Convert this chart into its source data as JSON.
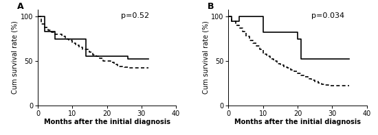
{
  "panel_A": {
    "label": "A",
    "p_value": "p=0.52",
    "solid_line_x": [
      0,
      2,
      3,
      5,
      6,
      14,
      14,
      25,
      26,
      32
    ],
    "solid_line_y": [
      100,
      83,
      83,
      75,
      75,
      55,
      55,
      55,
      52,
      52
    ],
    "dashed_line_x": [
      0,
      1,
      2,
      3,
      4,
      5,
      7,
      8,
      9,
      10,
      11,
      12,
      13,
      15,
      16,
      17,
      18,
      19,
      21,
      22,
      23,
      25,
      26,
      28,
      29,
      30,
      31,
      32
    ],
    "dashed_line_y": [
      100,
      92,
      88,
      85,
      82,
      80,
      78,
      75,
      73,
      70,
      68,
      65,
      63,
      60,
      57,
      55,
      53,
      50,
      48,
      46,
      44,
      43,
      42,
      42,
      42,
      42,
      42,
      42
    ],
    "xlim": [
      0,
      40
    ],
    "ylim": [
      0,
      108
    ],
    "yticks": [
      0,
      50,
      100
    ],
    "xticks": [
      0,
      10,
      20,
      30,
      40
    ],
    "xlabel": "Months after the initial diagnosis",
    "ylabel": "Cum survival rate (%)"
  },
  "panel_B": {
    "label": "B",
    "p_value": "p=0.034",
    "solid_line_x": [
      0,
      1,
      2,
      3,
      9,
      10,
      19,
      20,
      21,
      35
    ],
    "solid_line_y": [
      100,
      95,
      95,
      100,
      100,
      82,
      82,
      75,
      52,
      52
    ],
    "dashed_line_x": [
      0,
      1,
      2,
      3,
      4,
      5,
      6,
      7,
      8,
      9,
      10,
      11,
      12,
      13,
      14,
      15,
      16,
      17,
      18,
      19,
      20,
      21,
      22,
      23,
      24,
      25,
      26,
      27,
      28,
      29,
      30,
      31,
      32,
      33,
      34,
      35
    ],
    "dashed_line_y": [
      100,
      95,
      90,
      87,
      83,
      78,
      73,
      70,
      67,
      63,
      58,
      55,
      52,
      50,
      47,
      45,
      43,
      42,
      40,
      38,
      36,
      34,
      32,
      30,
      28,
      27,
      25,
      24,
      23,
      22,
      22,
      22,
      22,
      22,
      22,
      22
    ],
    "xlim": [
      0,
      40
    ],
    "ylim": [
      0,
      108
    ],
    "yticks": [
      0,
      50,
      100
    ],
    "xticks": [
      0,
      10,
      20,
      30,
      40
    ],
    "xlabel": "Months after the initial diagnosis",
    "ylabel": "Cum survival rate (%)"
  },
  "line_color": "#000000",
  "line_width": 1.2,
  "font_size_tick": 7,
  "font_size_panel": 9,
  "font_size_pval": 8,
  "font_size_axis_label": 7,
  "background_color": "#ffffff"
}
